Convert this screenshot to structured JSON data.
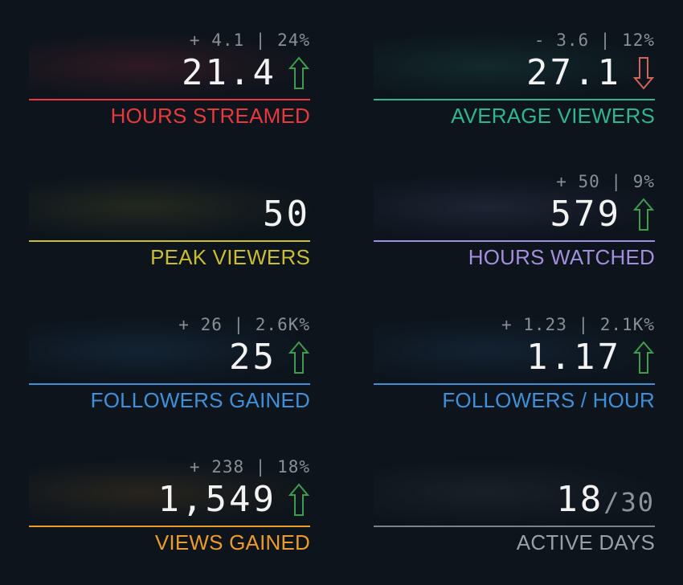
{
  "colors": {
    "background": "#0d141c",
    "hours_streamed": "#e8393f",
    "average_viewers": "#2fb494",
    "peak_viewers": "#c9bd34",
    "hours_watched": "#a38fdb",
    "followers_gained": "#3f8fd9",
    "followers_hour": "#3f8fd9",
    "views_gained": "#eb9b2b",
    "active_days": "#7d8288",
    "arrow_up": "#3e9d4d",
    "arrow_down": "#d0655a"
  },
  "stats": {
    "hours_streamed": {
      "delta": "+ 4.1 | 24%",
      "value": "21.4",
      "label": "HOURS STREAMED",
      "trend_icon": "arrow-up-icon"
    },
    "average_viewers": {
      "delta": "- 3.6 | 12%",
      "value": "27.1",
      "label": "AVERAGE VIEWERS",
      "trend_icon": "arrow-down-icon"
    },
    "peak_viewers": {
      "value": "50",
      "label": "PEAK VIEWERS"
    },
    "hours_watched": {
      "delta": "+ 50 | 9%",
      "value": "579",
      "label": "HOURS WATCHED",
      "trend_icon": "arrow-up-icon"
    },
    "followers_gained": {
      "delta": "+ 26 | 2.6K%",
      "value": "25",
      "label": "FOLLOWERS GAINED",
      "trend_icon": "arrow-up-icon"
    },
    "followers_hour": {
      "delta": "+ 1.23 | 2.1K%",
      "value": "1.17",
      "label": "FOLLOWERS / HOUR",
      "trend_icon": "arrow-up-icon"
    },
    "views_gained": {
      "delta": "+ 238 | 18%",
      "value": "1,549",
      "label": "VIEWS GAINED",
      "trend_icon": "arrow-up-icon"
    },
    "active_days": {
      "value": "18",
      "value_suffix": "/30",
      "label": "ACTIVE DAYS"
    }
  }
}
